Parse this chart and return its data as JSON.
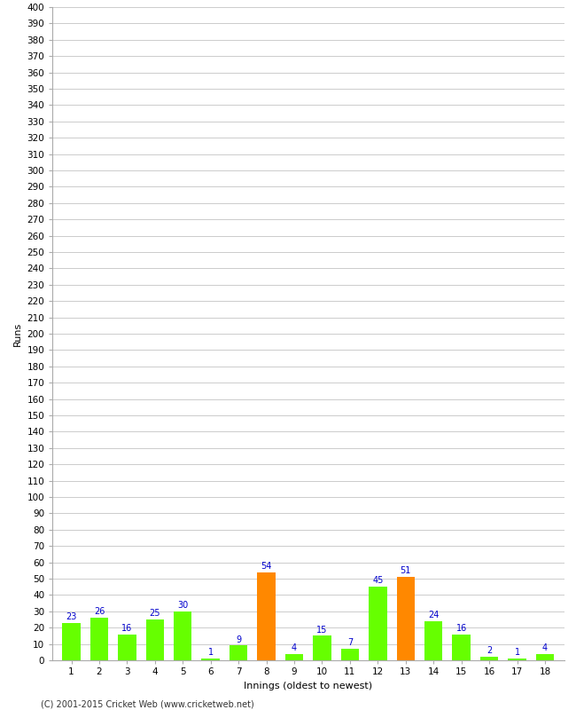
{
  "xlabel": "Innings (oldest to newest)",
  "ylabel": "Runs",
  "categories": [
    "1",
    "2",
    "3",
    "4",
    "5",
    "6",
    "7",
    "8",
    "9",
    "10",
    "11",
    "12",
    "13",
    "14",
    "15",
    "16",
    "17",
    "18"
  ],
  "values": [
    23,
    26,
    16,
    25,
    30,
    1,
    9,
    54,
    4,
    15,
    7,
    45,
    51,
    24,
    16,
    2,
    1,
    4
  ],
  "bar_colors": [
    "#66ff00",
    "#66ff00",
    "#66ff00",
    "#66ff00",
    "#66ff00",
    "#66ff00",
    "#66ff00",
    "#ff8800",
    "#66ff00",
    "#66ff00",
    "#66ff00",
    "#66ff00",
    "#ff8800",
    "#66ff00",
    "#66ff00",
    "#66ff00",
    "#66ff00",
    "#66ff00"
  ],
  "ylim": [
    0,
    400
  ],
  "label_color": "#0000cc",
  "label_fontsize": 7,
  "axis_fontsize": 7.5,
  "xlabel_fontsize": 8,
  "ylabel_fontsize": 8,
  "copyright": "(C) 2001-2015 Cricket Web (www.cricketweb.net)",
  "background_color": "#ffffff",
  "plot_background": "#ffffff",
  "grid_color": "#cccccc",
  "bar_width": 0.65
}
